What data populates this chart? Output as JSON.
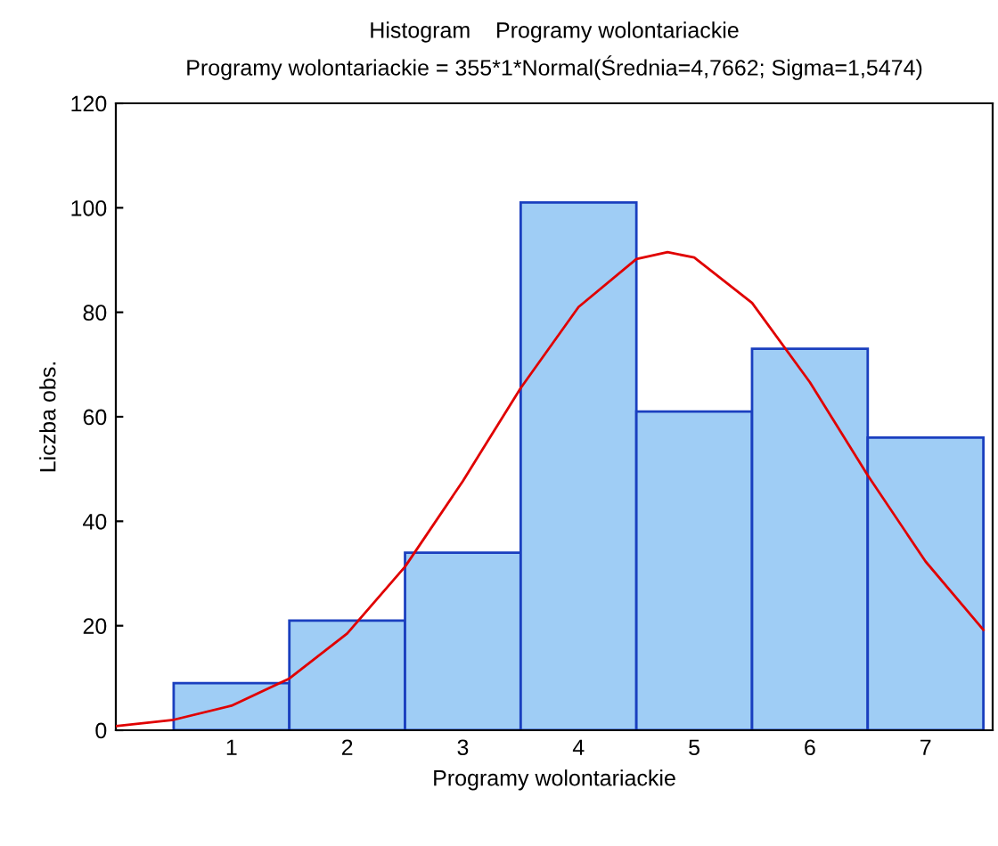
{
  "chart_data": {
    "type": "histogram",
    "title": "Histogram    Programy wolontariackie",
    "subtitle": "Programy wolontariackie = 355*1*Normal(Średnia=4,7662; Sigma=1,5474)",
    "xlabel": "Programy wolontariackie",
    "ylabel": "Liczba obs.",
    "bins": [
      0.5,
      1.5,
      2.5,
      3.5,
      4.5,
      5.5,
      6.5,
      7.5
    ],
    "values": [
      9,
      21,
      34,
      101,
      61,
      73,
      56
    ],
    "color": "#9fcdf5",
    "series": [
      {
        "type": "line",
        "color": "#e00000",
        "x": [
          0,
          0.5,
          1,
          1.5,
          2,
          2.5,
          3,
          3.5,
          4,
          4.5,
          4.77,
          5,
          5.5,
          6,
          6.5,
          7,
          7.5
        ],
        "values": [
          0.8,
          2.0,
          4.7,
          9.9,
          18.5,
          31.3,
          47.7,
          65.5,
          81.0,
          90.2,
          91.5,
          90.5,
          81.8,
          66.6,
          48.8,
          32.3,
          19.2
        ]
      }
    ],
    "xlim": [
      0,
      7.58
    ],
    "xticks": [
      1,
      2,
      3,
      4,
      5,
      6,
      7
    ],
    "ylim": [
      0,
      120
    ],
    "yticks": [
      0,
      20,
      40,
      60,
      80,
      100,
      120
    ],
    "grid": false,
    "legend": false
  }
}
